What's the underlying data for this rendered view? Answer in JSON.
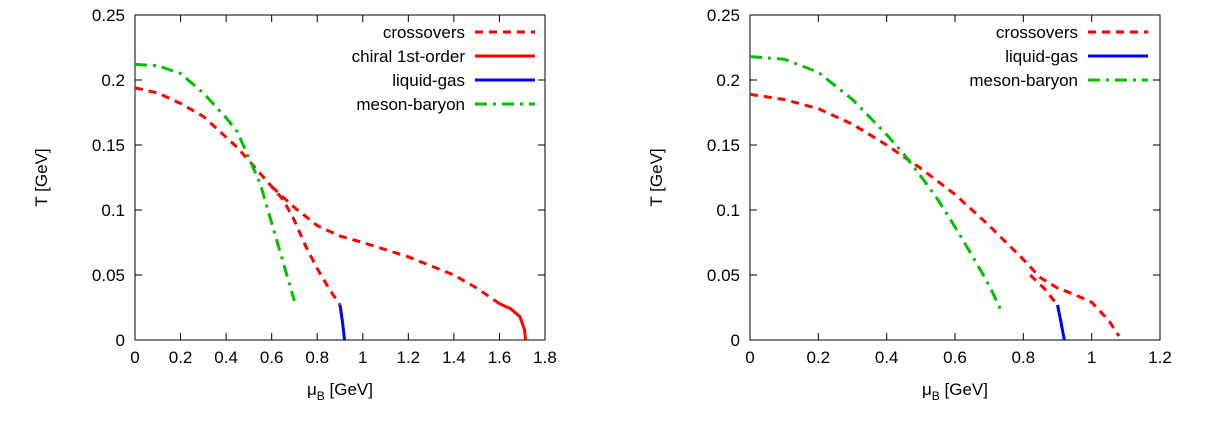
{
  "chart_data": [
    {
      "type": "line",
      "xlabel": "μ",
      "xlabel_sub": "B",
      "xlabel_unit": " [GeV]",
      "ylabel": "T [GeV]",
      "xlim": [
        0,
        1.8
      ],
      "ylim": [
        0,
        0.25
      ],
      "xticks": [
        "0",
        "0.2",
        "0.4",
        "0.6",
        "0.8",
        "1",
        "1.2",
        "1.4",
        "1.6",
        "1.8"
      ],
      "yticks": [
        "0",
        "0.05",
        "0.1",
        "0.15",
        "0.2",
        "0.25"
      ],
      "legend_position": "top-right",
      "series": [
        {
          "name": "crossovers",
          "color": "#ff0000",
          "style": "dashed",
          "segments": [
            [
              [
                0,
                0.194
              ],
              [
                0.1,
                0.19
              ],
              [
                0.2,
                0.182
              ],
              [
                0.3,
                0.172
              ],
              [
                0.4,
                0.156
              ],
              [
                0.45,
                0.148
              ],
              [
                0.5,
                0.138
              ],
              [
                0.55,
                0.128
              ],
              [
                0.6,
                0.118
              ],
              [
                0.65,
                0.108
              ],
              [
                0.7,
                0.092
              ],
              [
                0.75,
                0.072
              ],
              [
                0.8,
                0.055
              ],
              [
                0.85,
                0.04
              ],
              [
                0.9,
                0.027
              ]
            ],
            [
              [
                0.6,
                0.118
              ],
              [
                0.7,
                0.102
              ],
              [
                0.8,
                0.088
              ],
              [
                0.9,
                0.08
              ],
              [
                1.0,
                0.075
              ],
              [
                1.2,
                0.064
              ],
              [
                1.4,
                0.05
              ],
              [
                1.5,
                0.04
              ],
              [
                1.6,
                0.028
              ]
            ]
          ]
        },
        {
          "name": "chiral 1st-order",
          "color": "#ff0000",
          "style": "solid",
          "segments": [
            [
              [
                1.6,
                0.028
              ],
              [
                1.65,
                0.024
              ],
              [
                1.69,
                0.018
              ],
              [
                1.71,
                0.008
              ],
              [
                1.715,
                0
              ]
            ]
          ]
        },
        {
          "name": "liquid-gas",
          "color": "#0000ff",
          "style": "solid",
          "segments": [
            [
              [
                0.9,
                0.027
              ],
              [
                0.91,
                0.015
              ],
              [
                0.92,
                0
              ]
            ]
          ]
        },
        {
          "name": "meson-baryon",
          "color": "#00c000",
          "style": "dashdot",
          "segments": [
            [
              [
                0,
                0.212
              ],
              [
                0.1,
                0.211
              ],
              [
                0.2,
                0.205
              ],
              [
                0.3,
                0.19
              ],
              [
                0.4,
                0.171
              ],
              [
                0.45,
                0.16
              ],
              [
                0.5,
                0.14
              ],
              [
                0.55,
                0.12
              ],
              [
                0.6,
                0.09
              ],
              [
                0.65,
                0.06
              ],
              [
                0.7,
                0.03
              ]
            ]
          ]
        }
      ]
    },
    {
      "type": "line",
      "xlabel": "μ",
      "xlabel_sub": "B",
      "xlabel_unit": " [GeV]",
      "ylabel": "T [GeV]",
      "xlim": [
        0,
        1.2
      ],
      "ylim": [
        0,
        0.25
      ],
      "xticks": [
        "0",
        "0.2",
        "0.4",
        "0.6",
        "0.8",
        "1",
        "1.2"
      ],
      "yticks": [
        "0",
        "0.05",
        "0.1",
        "0.15",
        "0.2",
        "0.25"
      ],
      "legend_position": "top-right",
      "series": [
        {
          "name": "crossovers",
          "color": "#ff0000",
          "style": "dashed",
          "segments": [
            [
              [
                0,
                0.189
              ],
              [
                0.1,
                0.185
              ],
              [
                0.2,
                0.178
              ],
              [
                0.3,
                0.166
              ],
              [
                0.4,
                0.15
              ],
              [
                0.5,
                0.132
              ],
              [
                0.6,
                0.112
              ],
              [
                0.7,
                0.088
              ],
              [
                0.8,
                0.062
              ],
              [
                0.85,
                0.048
              ],
              [
                0.9,
                0.04
              ],
              [
                0.95,
                0.035
              ],
              [
                1.0,
                0.029
              ],
              [
                1.05,
                0.015
              ],
              [
                1.08,
                0.003
              ]
            ],
            [
              [
                0.82,
                0.05
              ],
              [
                0.86,
                0.04
              ],
              [
                0.9,
                0.027
              ]
            ]
          ]
        },
        {
          "name": "liquid-gas",
          "color": "#0000ff",
          "style": "solid",
          "segments": [
            [
              [
                0.9,
                0.027
              ],
              [
                0.91,
                0.014
              ],
              [
                0.92,
                0
              ]
            ]
          ]
        },
        {
          "name": "meson-baryon",
          "color": "#00c000",
          "style": "dashdot",
          "segments": [
            [
              [
                0,
                0.218
              ],
              [
                0.1,
                0.216
              ],
              [
                0.2,
                0.206
              ],
              [
                0.3,
                0.185
              ],
              [
                0.4,
                0.158
              ],
              [
                0.45,
                0.143
              ],
              [
                0.5,
                0.126
              ],
              [
                0.55,
                0.108
              ],
              [
                0.6,
                0.087
              ],
              [
                0.65,
                0.065
              ],
              [
                0.7,
                0.042
              ],
              [
                0.74,
                0.02
              ]
            ]
          ]
        }
      ]
    }
  ]
}
